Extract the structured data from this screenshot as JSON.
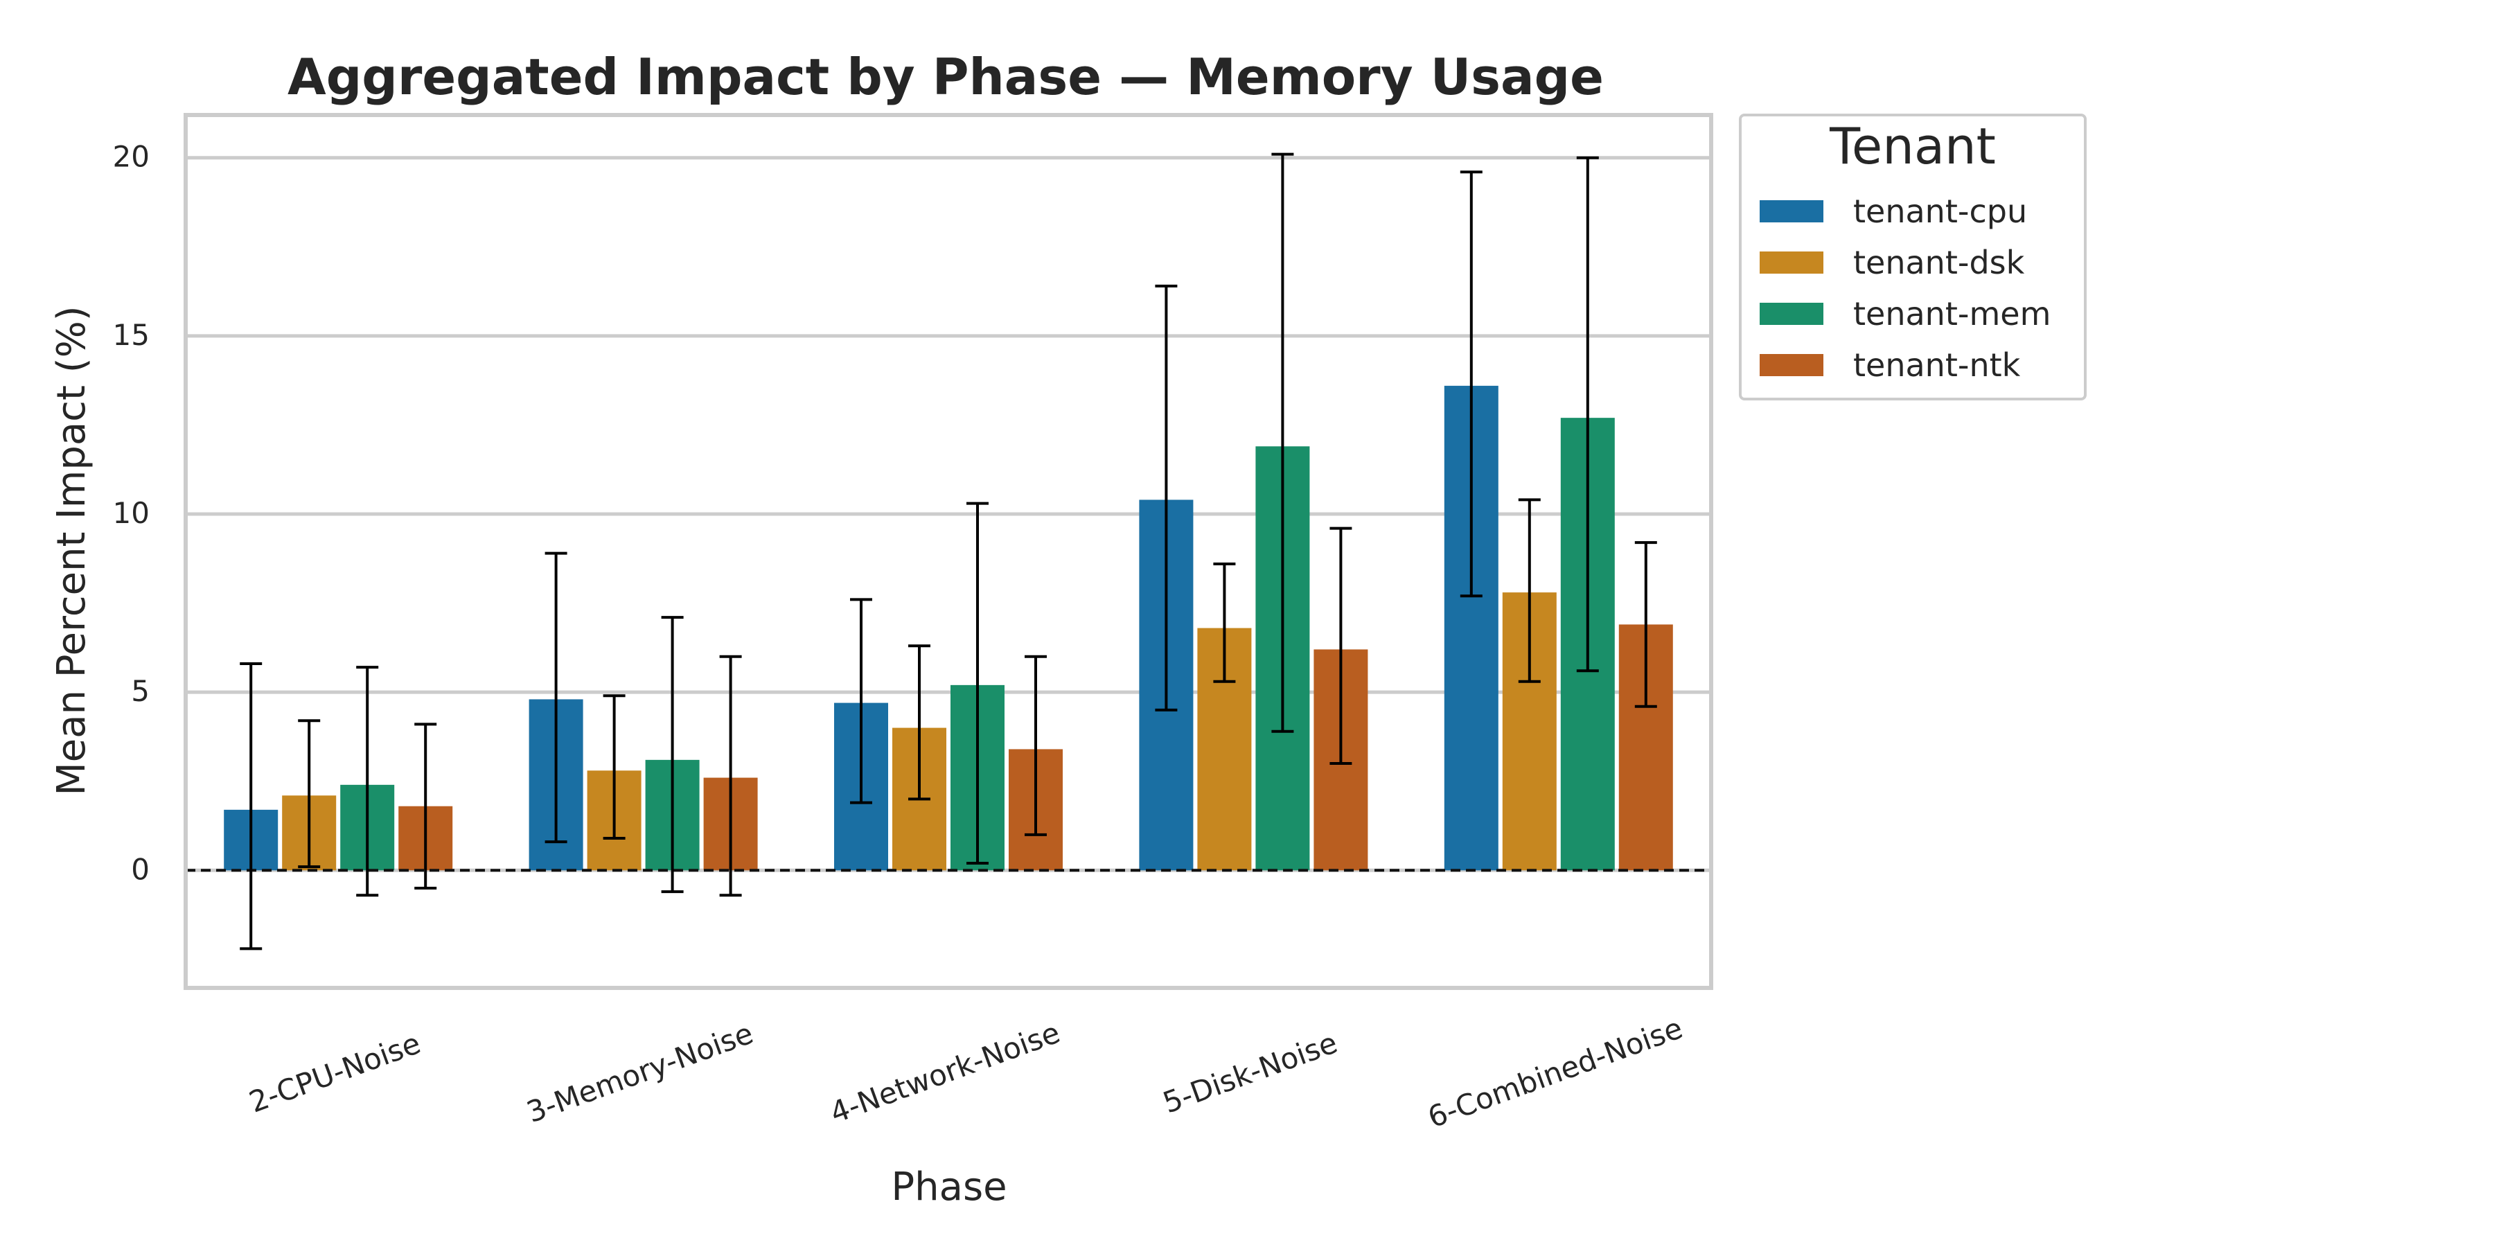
{
  "chart_data": {
    "type": "bar",
    "title": "Aggregated Impact by Phase — Memory Usage",
    "xlabel": "Phase",
    "ylabel": "Mean Percent Impact (%)",
    "ylim": [
      -3.3,
      21.2
    ],
    "yticks": [
      0,
      5,
      10,
      15,
      20
    ],
    "grid": true,
    "reference_line": 0,
    "legend_title": "Tenant",
    "legend_placement": "outside upper-right",
    "categories": [
      "2-CPU-Noise",
      "3-Memory-Noise",
      "4-Network-Noise",
      "5-Disk-Noise",
      "6-Combined-Noise"
    ],
    "series": [
      {
        "name": "tenant-cpu",
        "color": "#1a6fa3",
        "values": [
          1.7,
          4.8,
          4.7,
          10.4,
          13.6
        ],
        "err_low": [
          -2.2,
          0.8,
          1.9,
          4.5,
          7.7
        ],
        "err_high": [
          5.8,
          8.9,
          7.6,
          16.4,
          19.6
        ]
      },
      {
        "name": "tenant-dsk",
        "color": "#c68720",
        "values": [
          2.1,
          2.8,
          4.0,
          6.8,
          7.8
        ],
        "err_low": [
          0.1,
          0.9,
          2.0,
          5.3,
          5.3
        ],
        "err_high": [
          4.2,
          4.9,
          6.3,
          8.6,
          10.4
        ]
      },
      {
        "name": "tenant-mem",
        "color": "#1a8f69",
        "values": [
          2.4,
          3.1,
          5.2,
          11.9,
          12.7
        ],
        "err_low": [
          -0.7,
          -0.6,
          0.2,
          3.9,
          5.6
        ],
        "err_high": [
          5.7,
          7.1,
          10.3,
          20.1,
          20.0
        ]
      },
      {
        "name": "tenant-ntk",
        "color": "#b95e20",
        "values": [
          1.8,
          2.6,
          3.4,
          6.2,
          6.9
        ],
        "err_low": [
          -0.5,
          -0.7,
          1.0,
          3.0,
          4.6
        ],
        "err_high": [
          4.1,
          6.0,
          6.0,
          9.6,
          9.2
        ]
      }
    ]
  }
}
